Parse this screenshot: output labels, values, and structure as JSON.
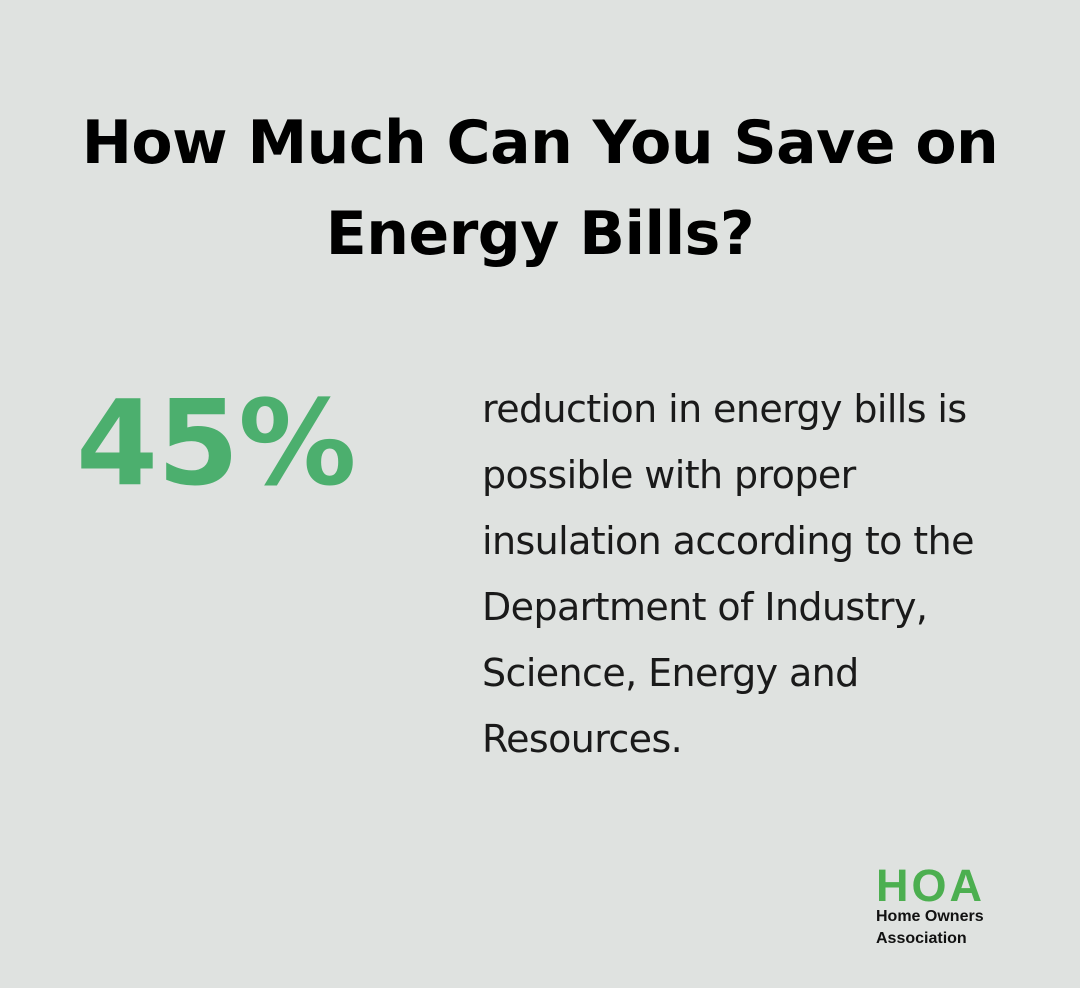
{
  "header": {
    "title": "How Much Can You Save on Energy Bills?"
  },
  "stat": {
    "value": "45%",
    "description": "reduction in energy bills is possible with proper insulation according to the Department of Industry, Science, Energy and Resources."
  },
  "logo": {
    "mark": "HOA",
    "line1": "Home Owners",
    "line2": "Association"
  },
  "colors": {
    "background": "#dfe2e0",
    "accent_green": "#4caf6e",
    "logo_green": "#4caf50",
    "title_text": "#000000",
    "body_text": "#1a1a1a"
  }
}
